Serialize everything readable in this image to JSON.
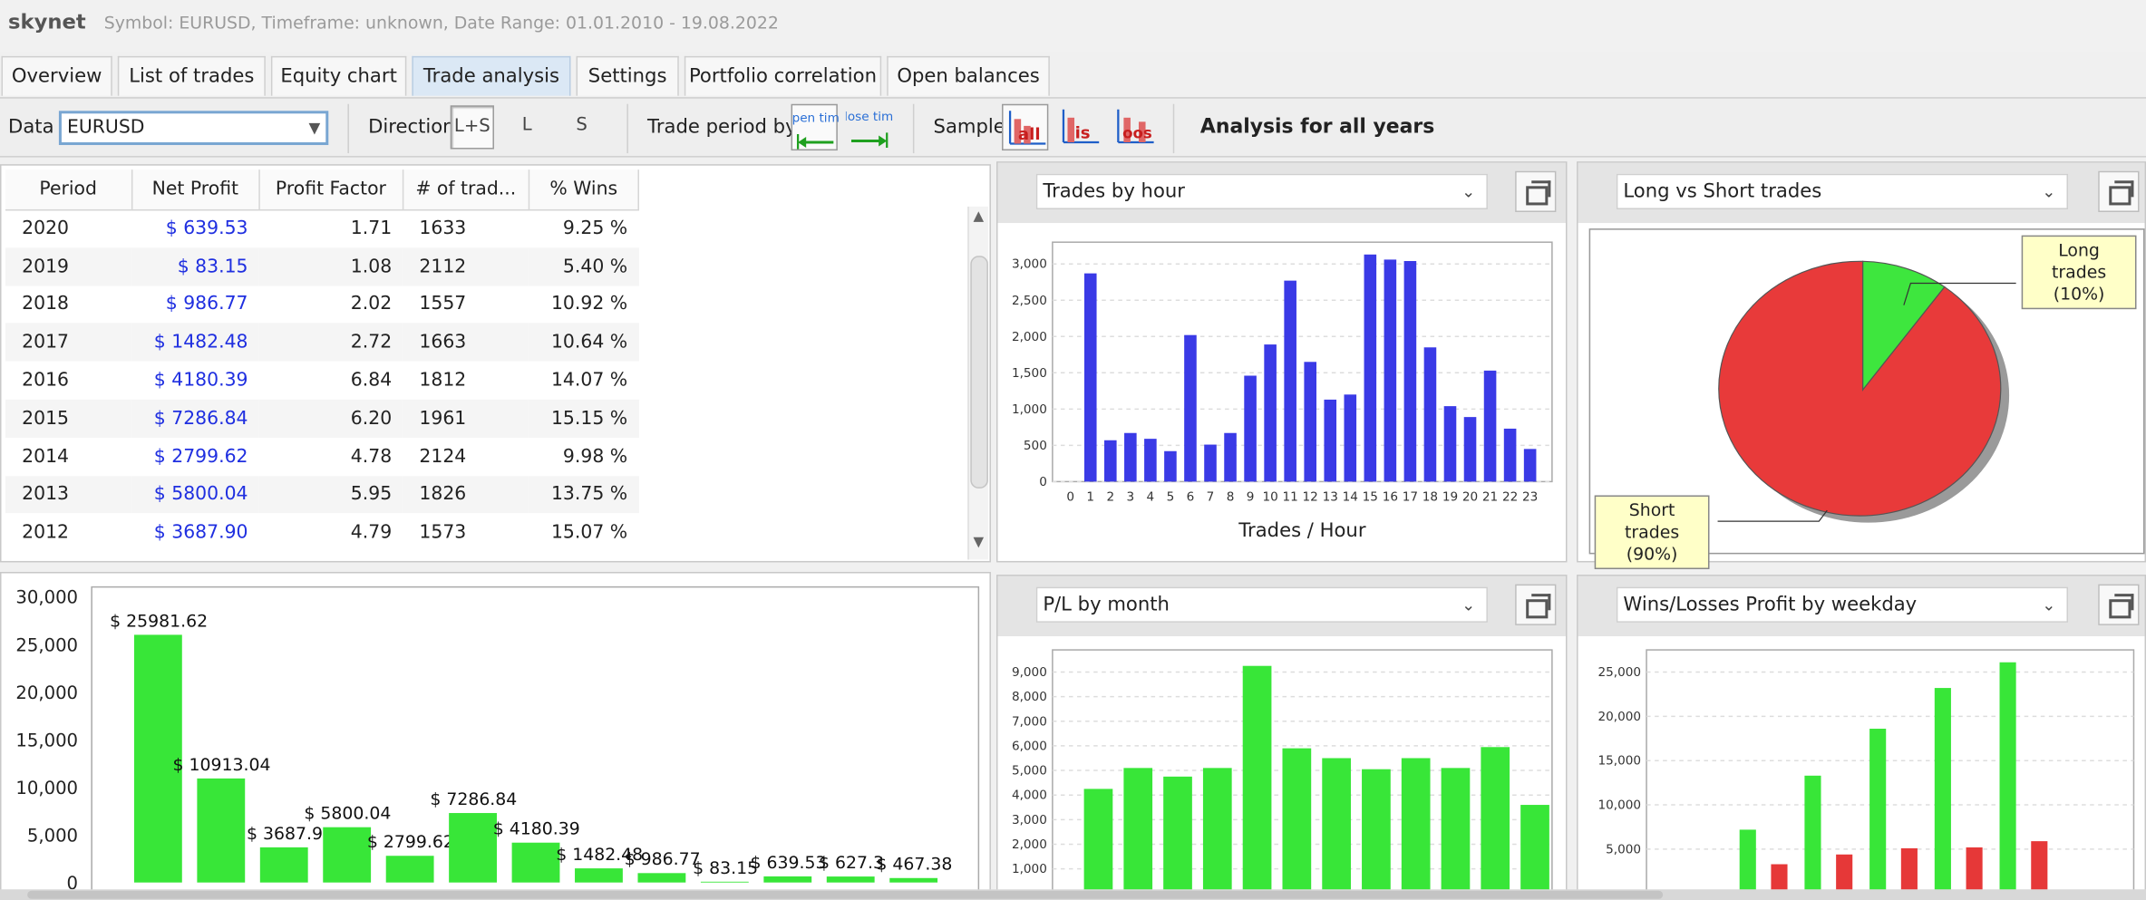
{
  "titlebar": {
    "app": "skynet",
    "info": "Symbol: EURUSD, Timeframe: unknown, Date Range: 01.01.2010 - 19.08.2022"
  },
  "tabs": [
    {
      "label": "Overview"
    },
    {
      "label": "List of trades"
    },
    {
      "label": "Equity chart"
    },
    {
      "label": "Trade analysis",
      "active": true
    },
    {
      "label": "Settings"
    },
    {
      "label": "Portfolio correlation"
    },
    {
      "label": "Open balances"
    }
  ],
  "toolbar": {
    "data_label": "Data",
    "data_value": "EURUSD",
    "direction_label": "Direction",
    "directions": [
      "L+S",
      "L",
      "S"
    ],
    "trade_period_label": "Trade period by",
    "open_time": "open time",
    "close_time": "close time",
    "sample_label": "Sample",
    "samples": [
      "all",
      "is",
      "oos"
    ],
    "heading": "Analysis for all years"
  },
  "table": {
    "columns": [
      "Period",
      "Net Profit",
      "Profit Factor",
      "# of trad...",
      "% Wins"
    ],
    "rows": [
      [
        "2020",
        "$ 639.53",
        "1.71",
        "1633",
        "9.25 %"
      ],
      [
        "2019",
        "$ 83.15",
        "1.08",
        "2112",
        "5.40 %"
      ],
      [
        "2018",
        "$ 986.77",
        "2.02",
        "1557",
        "10.92 %"
      ],
      [
        "2017",
        "$ 1482.48",
        "2.72",
        "1663",
        "10.64 %"
      ],
      [
        "2016",
        "$ 4180.39",
        "6.84",
        "1812",
        "14.07 %"
      ],
      [
        "2015",
        "$ 7286.84",
        "6.20",
        "1961",
        "15.15 %"
      ],
      [
        "2014",
        "$ 2799.62",
        "4.78",
        "2124",
        "9.98 %"
      ],
      [
        "2013",
        "$ 5800.04",
        "5.95",
        "1826",
        "13.75 %"
      ],
      [
        "2012",
        "$ 3687.90",
        "4.79",
        "1573",
        "15.07 %"
      ]
    ]
  },
  "panels": {
    "hour_select": "Trades by hour",
    "longshort_select": "Long vs Short trades",
    "month_select": "P/L by month",
    "weekday_select": "Wins/Losses Profit by weekday"
  },
  "colors": {
    "blue_bar": "#3a3ae6",
    "green_bar": "#38e638",
    "red_bar": "#e63838",
    "net_profit_text": "#1f2fe0"
  },
  "chart_data": [
    {
      "type": "bar",
      "xlabel": "Trades / Hour",
      "categories": [
        "0",
        "1",
        "2",
        "3",
        "4",
        "5",
        "6",
        "7",
        "8",
        "9",
        "10",
        "11",
        "12",
        "13",
        "14",
        "15",
        "16",
        "17",
        "18",
        "19",
        "20",
        "21",
        "22",
        "23"
      ],
      "values": [
        0,
        2870,
        570,
        670,
        590,
        420,
        2020,
        510,
        670,
        1460,
        1890,
        2770,
        1650,
        1130,
        1200,
        3130,
        3060,
        3040,
        1850,
        1040,
        890,
        1530,
        730,
        450
      ],
      "yticks": [
        "0",
        "500",
        "1,000",
        "1,500",
        "2,000",
        "2,500",
        "3,000"
      ],
      "ylim": [
        0,
        3300
      ]
    },
    {
      "type": "pie",
      "slices": [
        {
          "label": "Long trades (10%)",
          "value": 10
        },
        {
          "label": "Short trades (90%)",
          "value": 90
        }
      ]
    },
    {
      "type": "bar",
      "values": [
        25981.62,
        10913.04,
        3687.9,
        5800.04,
        2799.62,
        7286.84,
        4180.39,
        1482.48,
        986.77,
        83.15,
        639.53,
        627.3,
        467.38
      ],
      "data_labels": [
        "$ 25981.62",
        "$ 10913.04",
        "$ 3687.9",
        "$ 5800.04",
        "$ 2799.62",
        "$ 7286.84",
        "$ 4180.39",
        "$ 1482.48",
        "$ 986.77",
        "$ 83.15",
        "$ 639.53",
        "$ 627.3",
        "$ 467.38"
      ],
      "yticks": [
        "0",
        "5,000",
        "10,000",
        "15,000",
        "20,000",
        "25,000",
        "30,000"
      ],
      "ylim": [
        0,
        31000
      ]
    },
    {
      "type": "bar",
      "values": [
        4250,
        5100,
        4750,
        5100,
        9250,
        5900,
        5500,
        5050,
        5500,
        5100,
        5950,
        3600
      ],
      "yticks": [
        "1,000",
        "2,000",
        "3,000",
        "4,000",
        "5,000",
        "6,000",
        "7,000",
        "8,000",
        "9,000"
      ],
      "ylim": [
        0,
        9900
      ]
    },
    {
      "type": "bar",
      "series": [
        {
          "color": "green",
          "values": [
            7200,
            13300,
            18600,
            23200,
            26100
          ]
        },
        {
          "color": "red",
          "values": [
            3300,
            4400,
            5100,
            5200,
            5900
          ]
        }
      ],
      "yticks": [
        "5,000",
        "10,000",
        "15,000",
        "20,000",
        "25,000"
      ],
      "ylim": [
        0,
        27500
      ]
    }
  ]
}
